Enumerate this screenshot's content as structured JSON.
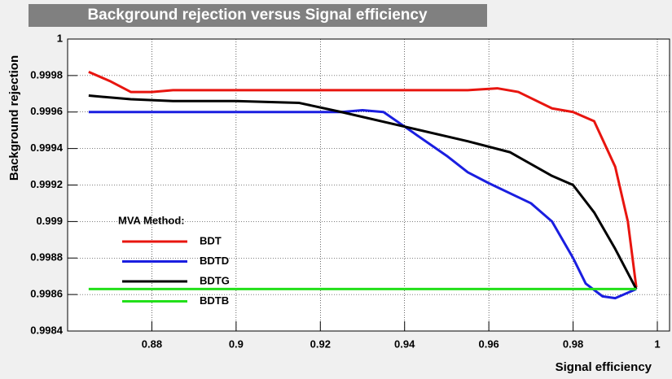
{
  "chart_data": {
    "type": "line",
    "title": "Background rejection versus Signal efficiency",
    "x_label": "Signal efficiency",
    "y_label": "Background rejection",
    "legend_title": "MVA Method:",
    "xlim": [
      0.86,
      1.0
    ],
    "xticks": [
      0.88,
      0.9,
      0.92,
      0.94,
      0.96,
      0.98,
      1
    ],
    "ylim": [
      0.9984,
      1.0
    ],
    "yticks": [
      0.9984,
      0.9986,
      0.9988,
      0.999,
      0.9992,
      0.9994,
      0.9996,
      0.9998,
      1
    ],
    "grid": true,
    "series": [
      {
        "name": "BDT",
        "color": "#e8150f",
        "x": [
          0.865,
          0.87,
          0.875,
          0.88,
          0.885,
          0.9,
          0.92,
          0.94,
          0.955,
          0.962,
          0.967,
          0.975,
          0.98,
          0.985,
          0.99,
          0.993,
          0.995
        ],
        "values": [
          0.99982,
          0.99977,
          0.99971,
          0.99971,
          0.99972,
          0.99972,
          0.99972,
          0.99972,
          0.99972,
          0.99973,
          0.99971,
          0.99962,
          0.9996,
          0.99955,
          0.9993,
          0.999,
          0.99864
        ]
      },
      {
        "name": "BDTD",
        "color": "#1a1ee0",
        "x": [
          0.865,
          0.925,
          0.93,
          0.935,
          0.94,
          0.95,
          0.955,
          0.96,
          0.97,
          0.975,
          0.98,
          0.983,
          0.987,
          0.99,
          0.995
        ],
        "values": [
          0.9996,
          0.9996,
          0.99961,
          0.9996,
          0.99952,
          0.99936,
          0.99927,
          0.99921,
          0.9991,
          0.999,
          0.9988,
          0.99866,
          0.99859,
          0.99858,
          0.99863
        ]
      },
      {
        "name": "BDTG",
        "color": "#000000",
        "x": [
          0.865,
          0.875,
          0.885,
          0.9,
          0.915,
          0.925,
          0.94,
          0.955,
          0.965,
          0.975,
          0.98,
          0.985,
          0.99,
          0.995
        ],
        "values": [
          0.99969,
          0.99967,
          0.99966,
          0.99966,
          0.99965,
          0.9996,
          0.99952,
          0.99944,
          0.99938,
          0.99925,
          0.9992,
          0.99905,
          0.99885,
          0.99863
        ]
      },
      {
        "name": "BDTB",
        "color": "#22e01a",
        "x": [
          0.865,
          0.995
        ],
        "values": [
          0.99863,
          0.99863
        ]
      }
    ]
  }
}
